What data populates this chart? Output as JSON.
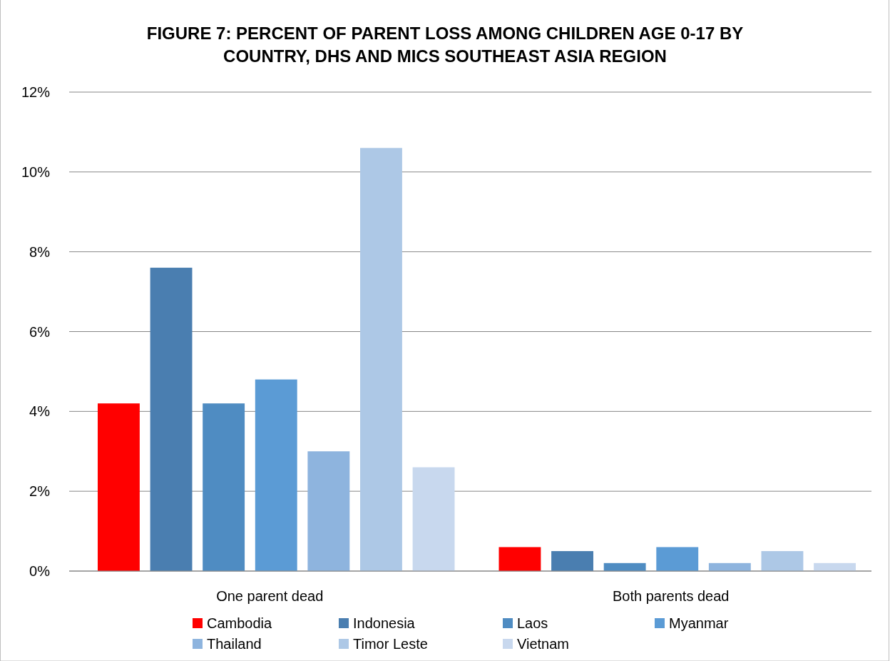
{
  "chart_data": {
    "type": "bar",
    "title": "FIGURE 7:  PERCENT OF PARENT LOSS AMONG CHILDREN  AGE 0-17 BY COUNTRY, DHS AND MICS SOUTHEAST ASIA REGION",
    "categories": [
      "One parent dead",
      "Both parents dead"
    ],
    "series": [
      {
        "name": "Cambodia",
        "color": "#ff0000",
        "values": [
          4.2,
          0.6
        ]
      },
      {
        "name": "Indonesia",
        "color": "#4a7eb0",
        "values": [
          7.6,
          0.5
        ]
      },
      {
        "name": "Laos",
        "color": "#4f8cc2",
        "values": [
          4.2,
          0.2
        ]
      },
      {
        "name": "Myanmar",
        "color": "#5b9bd5",
        "values": [
          4.8,
          0.6
        ]
      },
      {
        "name": "Thailand",
        "color": "#8eb4de",
        "values": [
          3.0,
          0.2
        ]
      },
      {
        "name": "Timor Leste",
        "color": "#adc8e6",
        "values": [
          10.6,
          0.5
        ]
      },
      {
        "name": "Vietnam",
        "color": "#c8d8ee",
        "values": [
          2.6,
          0.2
        ]
      }
    ],
    "ylim": [
      0,
      12
    ],
    "yticks": [
      {
        "value": 0,
        "label": "0%"
      },
      {
        "value": 2,
        "label": "2%"
      },
      {
        "value": 4,
        "label": "4%"
      },
      {
        "value": 6,
        "label": "6%"
      },
      {
        "value": 8,
        "label": "8%"
      },
      {
        "value": 10,
        "label": "10%"
      },
      {
        "value": 12,
        "label": "12%"
      }
    ],
    "grid": "y",
    "legend": "bottom"
  }
}
